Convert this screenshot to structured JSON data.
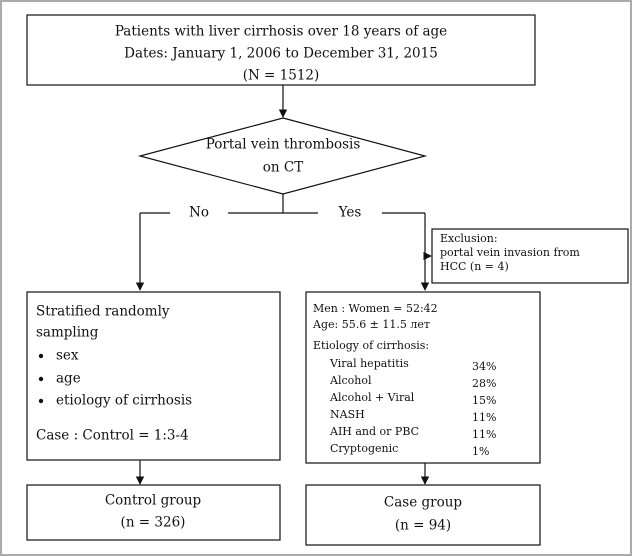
{
  "top_box": {
    "lines": [
      "Patients with liver cirrhosis over 18 years of age",
      "Dates: January 1, 2006 to December 31, 2015",
      "(N = 1512)"
    ]
  },
  "decision": {
    "lines": [
      "Portal vein thrombosis",
      "on CT"
    ],
    "no_label": "No",
    "yes_label": "Yes"
  },
  "exclusion": {
    "lines": [
      "Exclusion:",
      "portal vein invasion from",
      "HCC (n = 4)"
    ]
  },
  "control_sampling": {
    "lines": [
      "Stratified randomly",
      "sampling"
    ],
    "bullets": [
      "sex",
      "age",
      "etiology of cirrhosis"
    ],
    "ratio": "Case : Control = 1:3-4"
  },
  "case_details": {
    "sex_ratio": "Men : Women = 52:42",
    "age": "Age: 55.6 ± 11.5 лет",
    "etiology_title": "Etiology of cirrhosis:",
    "etiology": [
      {
        "name": "Viral hepatitis",
        "percent": "34%"
      },
      {
        "name": "Alcohol",
        "percent": "28%"
      },
      {
        "name": "Alcohol + Viral",
        "percent": "15%"
      },
      {
        "name": "NASH",
        "percent": "11%"
      },
      {
        "name": "AIH and or  PBC",
        "percent": "11%"
      },
      {
        "name": "Cryptogenic",
        "percent": "1%"
      }
    ]
  },
  "control_group": {
    "lines": [
      "Control group",
      "(n = 326)"
    ]
  },
  "case_group": {
    "lines": [
      "Case group",
      "(n = 94)"
    ]
  }
}
